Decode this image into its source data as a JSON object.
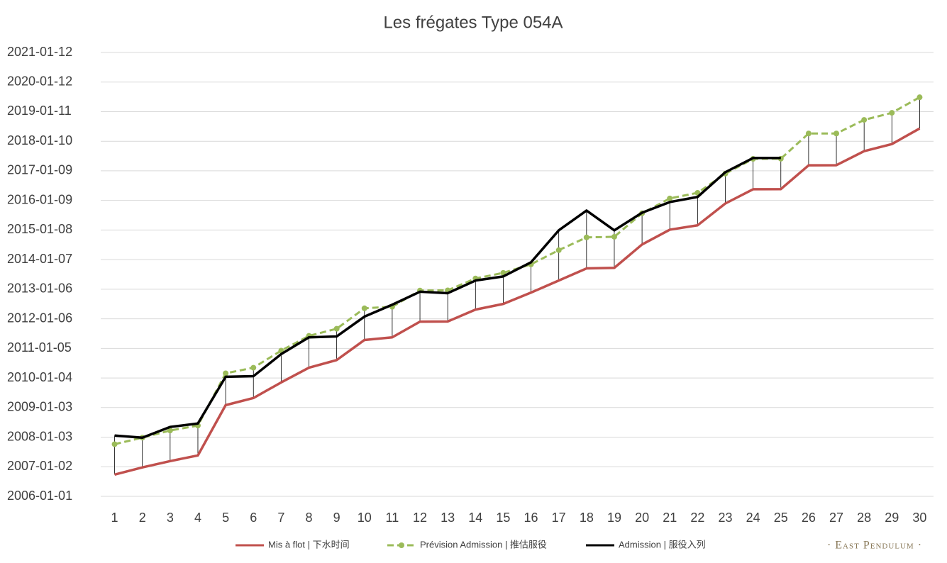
{
  "chart_data": {
    "type": "line",
    "title": "Les frégates Type 054A",
    "categories": [
      1,
      2,
      3,
      4,
      5,
      6,
      7,
      8,
      9,
      10,
      11,
      12,
      13,
      14,
      15,
      16,
      17,
      18,
      19,
      20,
      21,
      22,
      23,
      24,
      25,
      26,
      27,
      28,
      29,
      30
    ],
    "series": [
      {
        "name": "Mis à flot | 下水时间",
        "color": "#c0504d",
        "style": "solid",
        "values": [
          "2006-09-27",
          "2006-12-25",
          "2007-03-13",
          "2007-05-22",
          "2009-02-02",
          "2009-05-01",
          "2009-11-10",
          "2010-05-11",
          "2010-08-14",
          "2011-04-19",
          "2011-05-22",
          "2011-12-02",
          "2011-12-04",
          "2012-04-29",
          "2012-07-08",
          "2012-11-25",
          "2013-04-23",
          "2013-09-20",
          "2013-09-27",
          "2014-07-13",
          "2015-01-12",
          "2015-03-07",
          "2015-12-02",
          "2016-05-26",
          "2016-05-28",
          "2017-03-18",
          "2017-03-20",
          "2017-09-09",
          "2017-12-06",
          "2018-06-17"
        ]
      },
      {
        "name": "Prévision Admission | 推估服役",
        "color": "#9bbb59",
        "style": "dashed",
        "marker": "circle",
        "values": [
          "2007-10-08",
          "2007-12-28",
          "2008-03-25",
          "2008-05-26",
          "2010-03-03",
          "2010-05-11",
          "2010-12-08",
          "2011-06-09",
          "2011-09-05",
          "2012-05-15",
          "2012-06-03",
          "2012-12-21",
          "2012-12-23",
          "2013-05-19",
          "2013-07-27",
          "2013-11-10",
          "2014-05-04",
          "2014-10-09",
          "2014-10-16",
          "2015-08-03",
          "2016-02-03",
          "2016-04-12",
          "2016-12-05",
          "2017-06-06",
          "2017-06-08",
          "2018-04-16",
          "2018-04-16",
          "2018-10-01",
          "2018-12-28",
          "2019-07-08"
        ]
      },
      {
        "name": "Admission | 服役入列",
        "color": "#000000",
        "style": "solid",
        "values": [
          "2008-01-23",
          "2007-12-28",
          "2008-05-08",
          "2008-06-20",
          "2010-01-19",
          "2010-01-26",
          "2010-10-26",
          "2011-05-22",
          "2011-06-02",
          "2012-02-02",
          "2012-06-28",
          "2012-12-06",
          "2012-11-18",
          "2013-04-23",
          "2013-06-13",
          "2013-12-05",
          "2015-01-04",
          "2015-09-06",
          "2015-01-04",
          "2015-08-10",
          "2015-12-20",
          "2016-02-21",
          "2016-12-23",
          "2017-06-17",
          "2017-06-17",
          null,
          null,
          null,
          null,
          null
        ]
      }
    ],
    "ylim": [
      "2006-01-01",
      "2021-01-12"
    ],
    "yticks": [
      "2006-01-01",
      "2007-01-02",
      "2008-01-03",
      "2009-01-03",
      "2010-01-04",
      "2011-01-05",
      "2012-01-06",
      "2013-01-06",
      "2014-01-07",
      "2015-01-08",
      "2016-01-09",
      "2017-01-09",
      "2018-01-10",
      "2019-01-11",
      "2020-01-12",
      "2021-01-12"
    ],
    "grid": true,
    "high_low_lines": true,
    "legend": "bottom",
    "watermark": "· East Pendulum ·"
  }
}
